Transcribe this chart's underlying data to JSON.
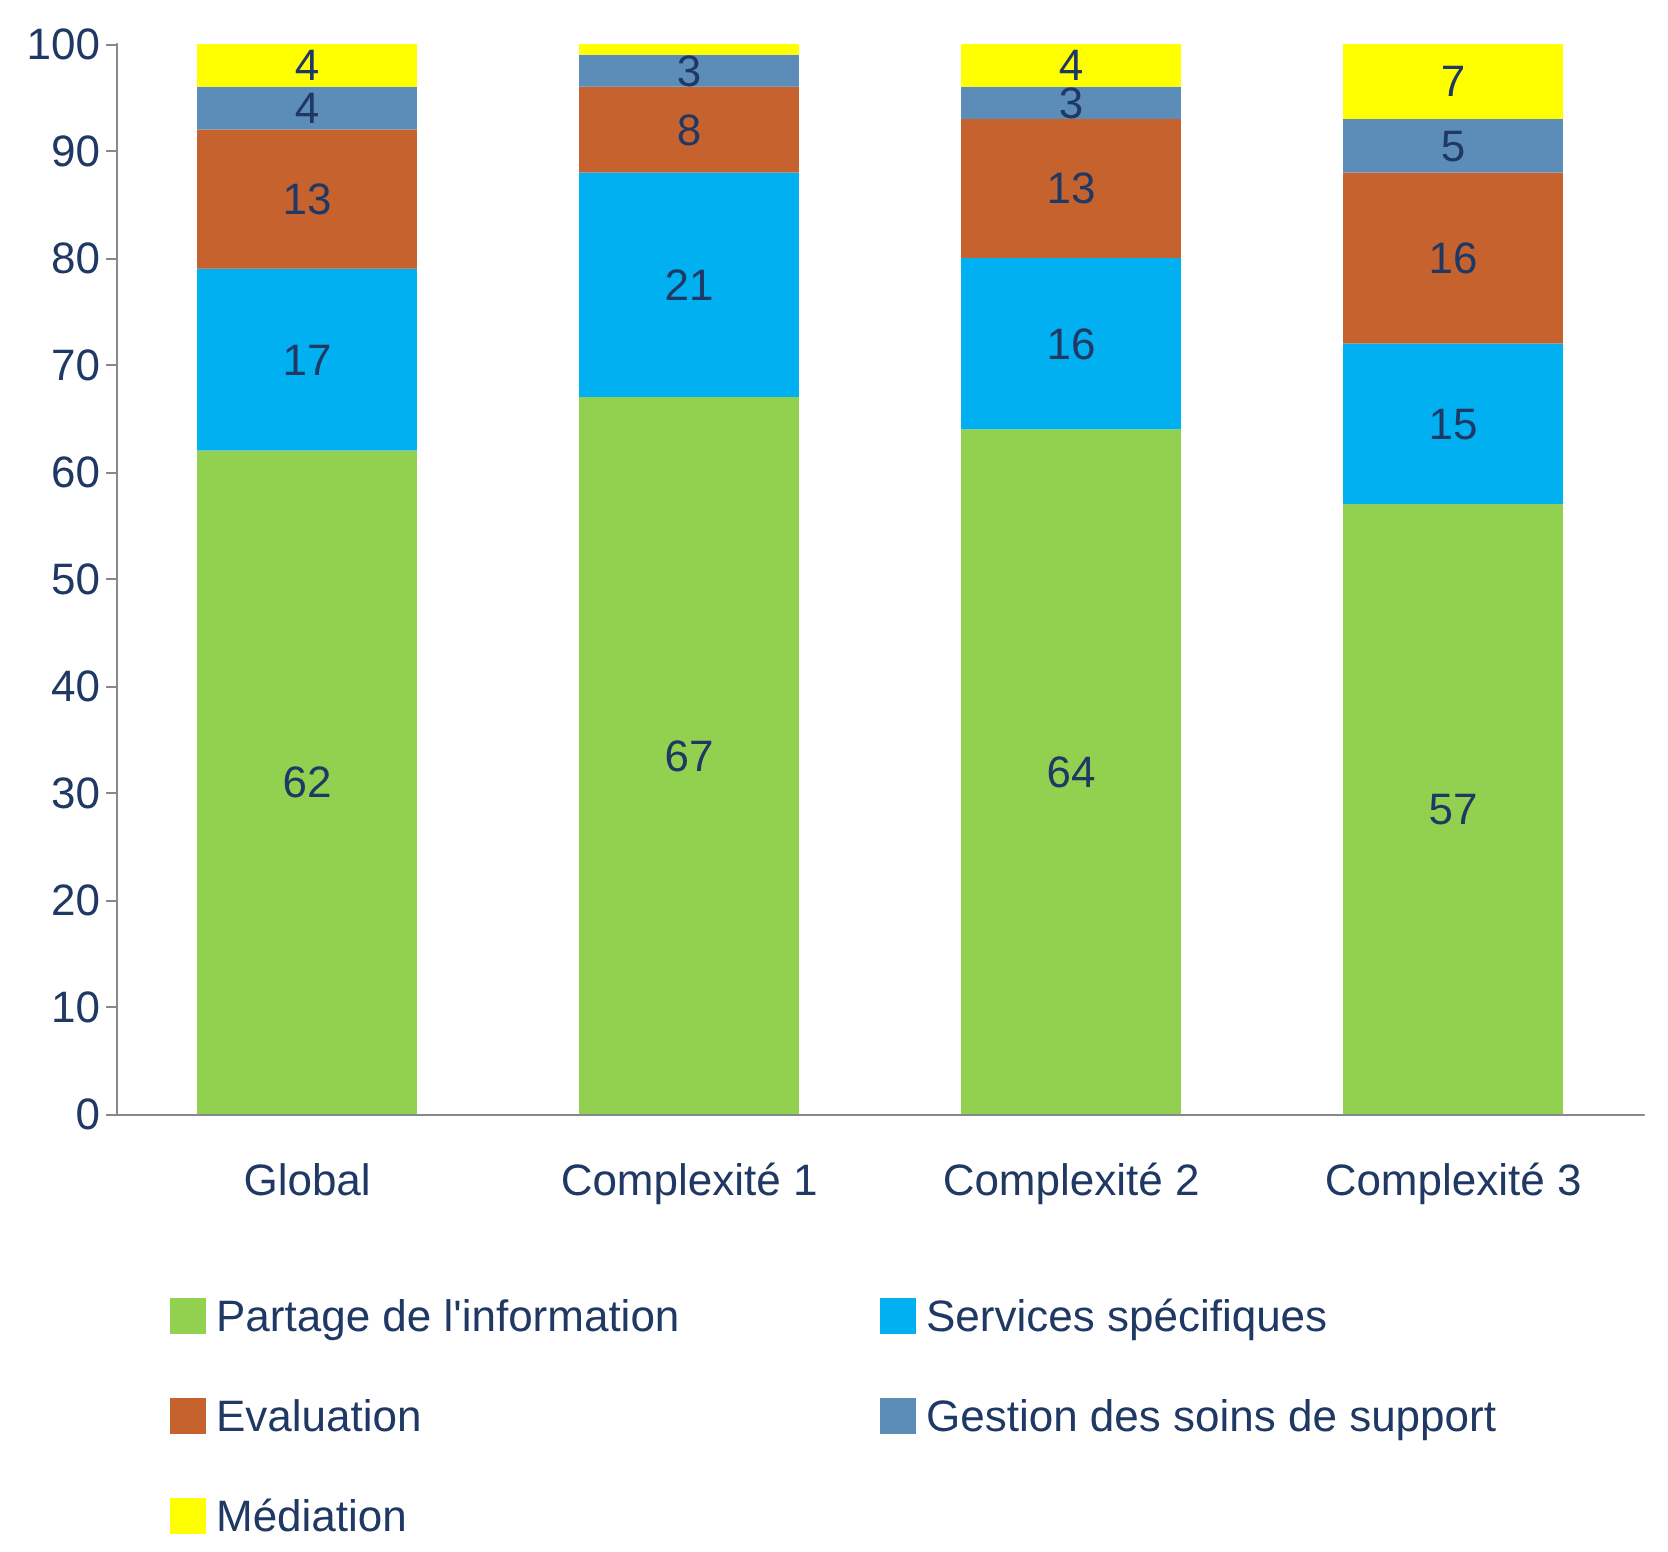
{
  "chart_data": {
    "type": "bar",
    "stacked": true,
    "categories": [
      "Global",
      "Complexité 1",
      "Complexité 2",
      "Complexité 3"
    ],
    "series": [
      {
        "name": "Partage de l'information",
        "color": "#92d050",
        "values": [
          62,
          67,
          64,
          57
        ],
        "value_labels": [
          "62",
          "67",
          "64",
          "57"
        ]
      },
      {
        "name": "Services spécifiques",
        "color": "#00b0f0",
        "values": [
          17,
          21,
          16,
          15
        ],
        "value_labels": [
          "17",
          "21",
          "16",
          "15"
        ]
      },
      {
        "name": "Evaluation",
        "color": "#c5622d",
        "values": [
          13,
          8,
          13,
          16
        ],
        "value_labels": [
          "13",
          "8",
          "13",
          "16"
        ]
      },
      {
        "name": "Gestion des soins de support",
        "color": "#5b8db8",
        "values": [
          4,
          3,
          3,
          5
        ],
        "value_labels": [
          "4",
          "3",
          "3",
          "5"
        ]
      },
      {
        "name": "Médiation",
        "color": "#ffff00",
        "values": [
          4,
          1,
          4,
          7
        ],
        "value_labels": [
          "4",
          null,
          "4",
          "7"
        ]
      }
    ],
    "ylim": [
      0,
      100
    ],
    "yticks": [
      0,
      10,
      20,
      30,
      40,
      50,
      60,
      70,
      80,
      90,
      100
    ],
    "grid": false,
    "legend": "bottom"
  }
}
